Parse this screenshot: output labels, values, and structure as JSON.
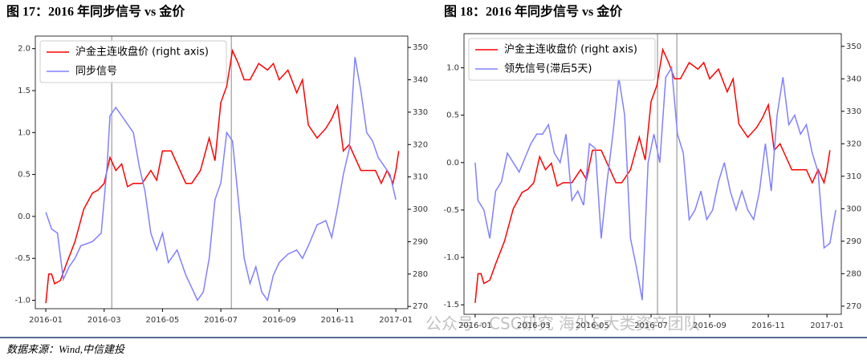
{
  "chart_data": [
    {
      "type": "line",
      "title": "图 17：2016 年同步信号 vs 金价",
      "legend": "upper left",
      "grid": false,
      "xlim": [
        -0.36,
        12.41
      ],
      "xticks": [
        {
          "value": 0,
          "label": "2016-01"
        },
        {
          "value": 2,
          "label": "2016-03"
        },
        {
          "value": 4,
          "label": "2016-05"
        },
        {
          "value": 6,
          "label": "2016-07"
        },
        {
          "value": 8,
          "label": "2016-09"
        },
        {
          "value": 10,
          "label": "2016-11"
        },
        {
          "value": 12,
          "label": "2017-01"
        }
      ],
      "ylim": [
        -1.1,
        2.15
      ],
      "yticks": [
        {
          "value": -1,
          "label": "-1.0"
        },
        {
          "value": -0.5,
          "label": "-0.5"
        },
        {
          "value": 0,
          "label": "0.0"
        },
        {
          "value": 0.5,
          "label": "0.5"
        },
        {
          "value": 1,
          "label": "1.0"
        },
        {
          "value": 1.5,
          "label": "1.5"
        },
        {
          "value": 2,
          "label": "2.0"
        }
      ],
      "y2lim": [
        269.3,
        353.5
      ],
      "y2ticks": [
        270,
        280,
        290,
        300,
        310,
        320,
        330,
        340,
        350
      ],
      "vlines": [
        2.26,
        6.36
      ],
      "series": [
        {
          "name": "沪金主连收盘价 (right axis)",
          "color": "#ff0000",
          "axis": "y2",
          "x": [
            0,
            0.1,
            0.2,
            0.3,
            0.5,
            0.7,
            1.0,
            1.3,
            1.6,
            1.8,
            2.0,
            2.2,
            2.4,
            2.6,
            2.8,
            3.0,
            3.3,
            3.6,
            3.8,
            4.0,
            4.3,
            4.6,
            4.8,
            5.0,
            5.3,
            5.6,
            5.8,
            6.0,
            6.2,
            6.4,
            6.6,
            6.8,
            7.0,
            7.3,
            7.6,
            7.8,
            8.0,
            8.3,
            8.6,
            8.8,
            9.0,
            9.3,
            9.6,
            9.8,
            10.0,
            10.2,
            10.4,
            10.6,
            10.8,
            11.0,
            11.3,
            11.5,
            11.7,
            11.9,
            12.0,
            12.1
          ],
          "values": [
            271,
            280,
            280,
            277,
            278,
            283,
            290,
            300,
            305,
            306,
            308,
            316,
            312,
            314,
            307,
            308,
            308,
            312,
            309,
            318,
            318,
            312,
            308,
            308,
            312,
            322,
            315,
            333,
            338,
            349,
            345,
            340,
            340,
            345,
            343,
            345,
            340,
            343,
            336,
            340,
            326,
            322,
            325,
            328,
            332,
            318,
            320,
            316,
            312,
            312,
            312,
            308,
            312,
            308,
            312,
            318
          ]
        },
        {
          "name": "同步信号",
          "color": "#8080ff",
          "axis": "y",
          "x": [
            0,
            0.2,
            0.4,
            0.6,
            0.8,
            1.0,
            1.2,
            1.6,
            1.9,
            2.1,
            2.2,
            2.4,
            2.6,
            2.8,
            3.0,
            3.2,
            3.4,
            3.6,
            3.8,
            4.0,
            4.2,
            4.5,
            4.8,
            5.0,
            5.2,
            5.4,
            5.6,
            5.8,
            6.0,
            6.2,
            6.4,
            6.6,
            6.8,
            7.0,
            7.2,
            7.4,
            7.6,
            7.8,
            8.0,
            8.3,
            8.6,
            8.8,
            9.0,
            9.3,
            9.6,
            9.8,
            10.0,
            10.2,
            10.4,
            10.6,
            10.8,
            11.0,
            11.2,
            11.4,
            11.6,
            11.8,
            12.0
          ],
          "values": [
            0.05,
            -0.15,
            -0.2,
            -0.75,
            -0.6,
            -0.5,
            -0.35,
            -0.3,
            -0.2,
            0.6,
            1.2,
            1.3,
            1.2,
            1.1,
            1.0,
            0.6,
            0.3,
            -0.2,
            -0.4,
            -0.2,
            -0.55,
            -0.4,
            -0.7,
            -0.85,
            -1.0,
            -0.9,
            -0.5,
            0.2,
            0.4,
            1.0,
            0.9,
            0.2,
            -0.5,
            -0.8,
            -0.6,
            -0.9,
            -1.0,
            -0.7,
            -0.55,
            -0.45,
            -0.4,
            -0.5,
            -0.35,
            -0.1,
            -0.05,
            -0.25,
            0.1,
            0.5,
            0.8,
            1.9,
            1.5,
            1.0,
            0.9,
            0.7,
            0.6,
            0.5,
            0.2
          ]
        }
      ]
    },
    {
      "type": "line",
      "title": "图 18：2016 年同步信号 vs 金价",
      "legend": "upper left",
      "grid": false,
      "xlim": [
        -0.38,
        12.49
      ],
      "xticks": [
        {
          "value": 0,
          "label": "2016-01"
        },
        {
          "value": 2,
          "label": "2016-03"
        },
        {
          "value": 4,
          "label": "2016-05"
        },
        {
          "value": 6,
          "label": "2016-07"
        },
        {
          "value": 8,
          "label": "2016-09"
        },
        {
          "value": 10,
          "label": "2016-11"
        },
        {
          "value": 12,
          "label": "2017-01"
        }
      ],
      "ylim": [
        -1.6,
        1.36
      ],
      "yticks": [
        {
          "value": -1.5,
          "label": "-1.5"
        },
        {
          "value": -1,
          "label": "-1.0"
        },
        {
          "value": -0.5,
          "label": "-0.5"
        },
        {
          "value": 0,
          "label": "0.0"
        },
        {
          "value": 0.5,
          "label": "0.5"
        },
        {
          "value": 1,
          "label": "1.0"
        }
      ],
      "y2lim": [
        267.5,
        353.9
      ],
      "y2ticks": [
        270,
        280,
        290,
        300,
        310,
        320,
        330,
        340,
        350
      ],
      "vlines": [
        6.22,
        6.88
      ],
      "series": [
        {
          "name": "沪金主连收盘价 (right axis)",
          "color": "#ff0000",
          "axis": "y2",
          "x": [
            0,
            0.1,
            0.2,
            0.3,
            0.5,
            0.7,
            1.0,
            1.3,
            1.6,
            1.8,
            2.0,
            2.2,
            2.4,
            2.6,
            2.8,
            3.0,
            3.3,
            3.6,
            3.8,
            4.0,
            4.3,
            4.6,
            4.8,
            5.0,
            5.3,
            5.6,
            5.8,
            6.0,
            6.2,
            6.4,
            6.6,
            6.8,
            7.0,
            7.3,
            7.6,
            7.8,
            8.0,
            8.3,
            8.6,
            8.8,
            9.0,
            9.3,
            9.6,
            9.8,
            10.0,
            10.2,
            10.4,
            10.6,
            10.8,
            11.0,
            11.3,
            11.5,
            11.7,
            11.9,
            12.0,
            12.1
          ],
          "values": [
            271,
            280,
            280,
            277,
            278,
            283,
            290,
            300,
            305,
            306,
            308,
            316,
            312,
            314,
            307,
            308,
            308,
            312,
            309,
            318,
            318,
            312,
            308,
            308,
            312,
            322,
            315,
            333,
            338,
            349,
            345,
            340,
            340,
            345,
            343,
            345,
            340,
            343,
            336,
            340,
            326,
            322,
            325,
            328,
            332,
            318,
            320,
            316,
            312,
            312,
            312,
            308,
            312,
            308,
            312,
            318
          ]
        },
        {
          "name": "领先信号(滞后5天)",
          "color": "#8080ff",
          "axis": "y",
          "x": [
            0,
            0.1,
            0.3,
            0.5,
            0.7,
            0.9,
            1.1,
            1.3,
            1.5,
            1.7,
            1.9,
            2.1,
            2.3,
            2.5,
            2.7,
            2.9,
            3.1,
            3.3,
            3.5,
            3.7,
            3.9,
            4.1,
            4.3,
            4.5,
            4.7,
            4.9,
            5.1,
            5.3,
            5.5,
            5.7,
            5.9,
            6.1,
            6.3,
            6.5,
            6.7,
            6.9,
            7.1,
            7.3,
            7.5,
            7.7,
            7.9,
            8.1,
            8.3,
            8.5,
            8.7,
            8.9,
            9.1,
            9.3,
            9.5,
            9.7,
            9.9,
            10.1,
            10.3,
            10.5,
            10.7,
            10.9,
            11.1,
            11.3,
            11.5,
            11.7,
            11.9,
            12.1,
            12.3
          ],
          "values": [
            0.0,
            -0.4,
            -0.5,
            -0.8,
            -0.3,
            -0.2,
            0.1,
            0.0,
            -0.1,
            0.05,
            0.2,
            0.3,
            0.3,
            0.4,
            0.1,
            0.0,
            0.3,
            -0.4,
            -0.3,
            -0.45,
            0.2,
            0.15,
            -0.8,
            -0.2,
            0.3,
            0.9,
            0.5,
            -0.8,
            -1.1,
            -1.45,
            0.0,
            0.3,
            0.0,
            0.9,
            1.0,
            0.3,
            0.1,
            -0.6,
            -0.5,
            -0.3,
            -0.6,
            -0.5,
            -0.2,
            0.0,
            -0.3,
            -0.5,
            -0.3,
            -0.5,
            -0.6,
            -0.3,
            0.2,
            -0.3,
            0.5,
            0.9,
            0.4,
            0.5,
            0.3,
            0.4,
            0.1,
            -0.1,
            -0.9,
            -0.85,
            -0.5
          ]
        }
      ]
    }
  ],
  "source": "数据来源：Wind,中信建投",
  "watermark": "公众号 · CSC研究 海外&大类资产团队"
}
